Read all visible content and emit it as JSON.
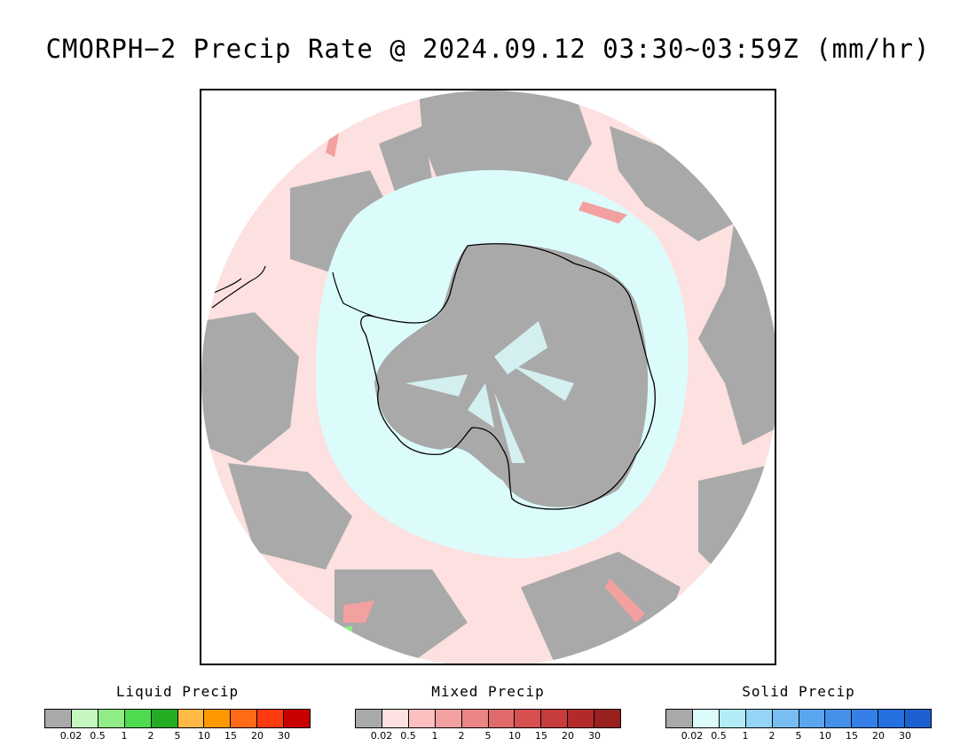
{
  "title": "CMORPH−2 Precip Rate @ 2024.09.12 03:30~03:59Z (mm/hr)",
  "colors": {
    "no_precip_gray": "#a9a9a9",
    "mixed_light": "#fde0e0",
    "solid_light": "#dcfcfc",
    "coastline": "#000000"
  },
  "legends": [
    {
      "id": "liquid",
      "title": "Liquid Precip",
      "colors": [
        "#a9a9a9",
        "#c6f7c0",
        "#8fec86",
        "#4fdb4f",
        "#23ad23",
        "#ffb944",
        "#ff9900",
        "#ff6a16",
        "#ff3a0e",
        "#c80000"
      ],
      "ticks": [
        "0.02",
        "0.5",
        "1",
        "2",
        "5",
        "10",
        "15",
        "20",
        "30"
      ]
    },
    {
      "id": "mixed",
      "title": "Mixed Precip",
      "colors": [
        "#a9a9a9",
        "#fde0e0",
        "#fcc0c0",
        "#f3a0a0",
        "#ea8585",
        "#e06a6a",
        "#d65050",
        "#c73c3c",
        "#b42a2a",
        "#9a1f1f"
      ],
      "ticks": [
        "0.02",
        "0.5",
        "1",
        "2",
        "5",
        "10",
        "15",
        "20",
        "30"
      ]
    },
    {
      "id": "solid",
      "title": "Solid Precip",
      "colors": [
        "#a9a9a9",
        "#dcfcfc",
        "#b3ecf7",
        "#95d4f5",
        "#78bef3",
        "#5aa6ee",
        "#4590ea",
        "#3580e6",
        "#2470e0",
        "#1c5fd0"
      ],
      "ticks": [
        "0.02",
        "0.5",
        "1",
        "2",
        "5",
        "10",
        "15",
        "20",
        "30"
      ]
    }
  ]
}
